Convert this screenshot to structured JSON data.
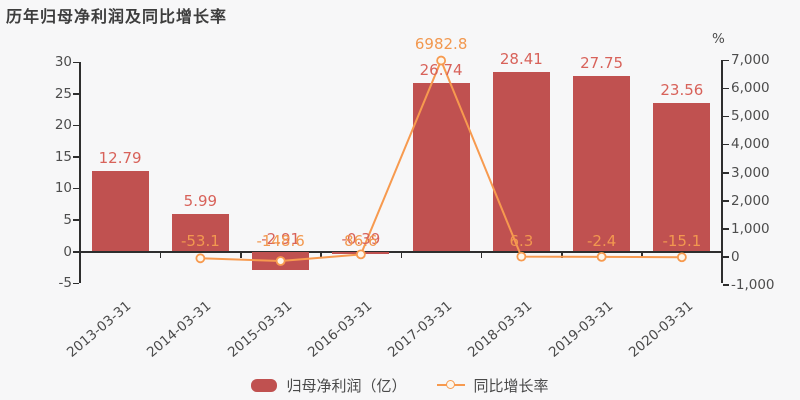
{
  "title": {
    "text": "历年归母净利润及同比增长率"
  },
  "colors": {
    "background": "#f7f7f8",
    "bar": "#c05150",
    "bar_label": "#d8625a",
    "line": "#f79a4f",
    "line_label": "#f2984f",
    "marker_fill": "#fdf6ec",
    "axis_line": "#2e2e2e",
    "axis_text": "#4d4d4d"
  },
  "legend": {
    "items": [
      {
        "label": "归母净利润（亿）",
        "type": "bar"
      },
      {
        "label": "同比增长率",
        "type": "line"
      }
    ]
  },
  "chart_data": {
    "type": "bar+line",
    "categories": [
      "2013-03-31",
      "2014-03-31",
      "2015-03-31",
      "2016-03-31",
      "2017-03-31",
      "2018-03-31",
      "2019-03-31",
      "2020-03-31"
    ],
    "series": [
      {
        "name": "归母净利润（亿）",
        "type": "bar",
        "y_axis": "left",
        "values": [
          12.79,
          5.99,
          -2.91,
          -0.39,
          26.74,
          28.41,
          27.75,
          23.56
        ],
        "data_labels": [
          "12.79",
          "5.99",
          "-2.91",
          "-0.39",
          "26.74",
          "28.41",
          "27.75",
          "23.56"
        ]
      },
      {
        "name": "同比增长率",
        "type": "line",
        "y_axis": "right",
        "marker": "open-circle",
        "start_category_index": 1,
        "values": [
          -53.1,
          -148.6,
          86.6,
          6982.8,
          6.3,
          -2.4,
          -15.1
        ],
        "data_labels": [
          "-53.1",
          "-148.6",
          "86.6",
          "6982.8",
          "6.3",
          "-2.4",
          "-15.1"
        ]
      }
    ],
    "left_axis": {
      "min": -5,
      "max": 30,
      "tick_values": [
        30,
        25,
        20,
        15,
        10,
        5,
        0,
        -5
      ],
      "tick_labels": [
        "30",
        "25",
        "20",
        "15",
        "10",
        "5",
        "0",
        "-5"
      ]
    },
    "right_axis": {
      "min": -1000,
      "max": 7000,
      "unit": "%",
      "tick_values": [
        7000,
        6000,
        5000,
        4000,
        3000,
        2000,
        1000,
        0,
        -1000
      ],
      "tick_labels": [
        "7,000",
        "6,000",
        "5,000",
        "4,000",
        "3,000",
        "2,000",
        "1,000",
        "0",
        "-1,000"
      ]
    },
    "grid": "off",
    "legend_position": "bottom-center"
  }
}
